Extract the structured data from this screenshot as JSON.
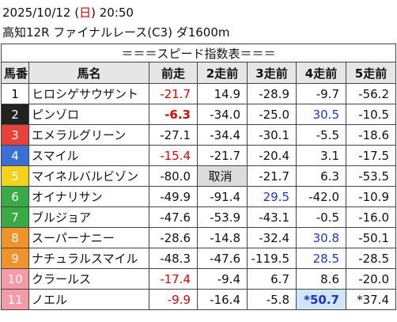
{
  "header": {
    "date": "2025/10/12",
    "weekday": "日",
    "time": "20:50",
    "race": "高知12R ファイナルレース(C3) ダ1600m"
  },
  "table": {
    "title": "＝＝＝スピード指数表＝＝＝",
    "columns": [
      "馬番",
      "馬名",
      "前走",
      "2走前",
      "3走前",
      "4走前",
      "5走前"
    ],
    "rows": [
      {
        "no": "1",
        "frame": "#ffffff",
        "no_color": "#000000",
        "name": "ヒロシゲサウザント",
        "speeds": [
          {
            "text": "-21.7",
            "style": "red"
          },
          "14.9",
          "-28.9",
          "-9.7",
          "-56.2"
        ]
      },
      {
        "no": "2",
        "frame": "#222222",
        "no_color": "#ffffff",
        "name": "ピンゾロ",
        "speeds": [
          {
            "text": "-6.3",
            "style": "red-bold"
          },
          "-34.0",
          "-25.0",
          {
            "text": "30.5",
            "style": "blue"
          },
          "-10.5"
        ]
      },
      {
        "no": "3",
        "frame": "#e8413a",
        "no_color": "#ffffff",
        "name": "エメラルグリーン",
        "speeds": [
          "-27.1",
          "-34.4",
          "-30.1",
          "-5.5",
          "-18.6"
        ]
      },
      {
        "no": "4",
        "frame": "#3a6fd8",
        "no_color": "#ffffff",
        "name": "スマイル",
        "speeds": [
          {
            "text": "-15.4",
            "style": "red"
          },
          "-21.7",
          "-20.4",
          "3.1",
          "-17.5"
        ]
      },
      {
        "no": "5",
        "frame": "#f2d21b",
        "no_color": "#ffffff",
        "name": "マイネルバルビゾン",
        "speeds": [
          "-80.0",
          {
            "text": "取消",
            "style": "scratch"
          },
          "-21.7",
          "6.3",
          "-53.5"
        ]
      },
      {
        "no": "6",
        "frame": "#3aaa45",
        "no_color": "#ffffff",
        "name": "オイナリサン",
        "speeds": [
          "-49.9",
          "-91.4",
          {
            "text": "29.5",
            "style": "blue"
          },
          "-42.0",
          "-10.9"
        ]
      },
      {
        "no": "7",
        "frame": "#3aaa45",
        "no_color": "#ffffff",
        "name": "ブルジョア",
        "speeds": [
          "-47.6",
          "-53.9",
          "-43.1",
          "-0.5",
          "-16.0"
        ]
      },
      {
        "no": "8",
        "frame": "#f0932b",
        "no_color": "#ffffff",
        "name": "スーパーナニー",
        "speeds": [
          "-28.6",
          "-14.8",
          "-32.4",
          {
            "text": "30.8",
            "style": "blue"
          },
          "-50.1"
        ]
      },
      {
        "no": "9",
        "frame": "#f0932b",
        "no_color": "#ffffff",
        "name": "ナチュラルスマイル",
        "speeds": [
          "-48.3",
          "-47.6",
          "-119.5",
          {
            "text": "28.5",
            "style": "blue"
          },
          "-28.5"
        ]
      },
      {
        "no": "10",
        "frame": "#f59aa6",
        "no_color": "#ffffff",
        "name": "クラールス",
        "speeds": [
          {
            "text": "-17.4",
            "style": "red"
          },
          "-9.4",
          "6.7",
          "8.6",
          "-20.0"
        ]
      },
      {
        "no": "11",
        "frame": "#f59aa6",
        "no_color": "#ffffff",
        "name": "ノエル",
        "speeds": [
          {
            "text": "-9.9",
            "style": "red"
          },
          "-16.4",
          "-5.8",
          {
            "text": "*50.7",
            "style": "best"
          },
          "*37.4"
        ]
      }
    ]
  }
}
